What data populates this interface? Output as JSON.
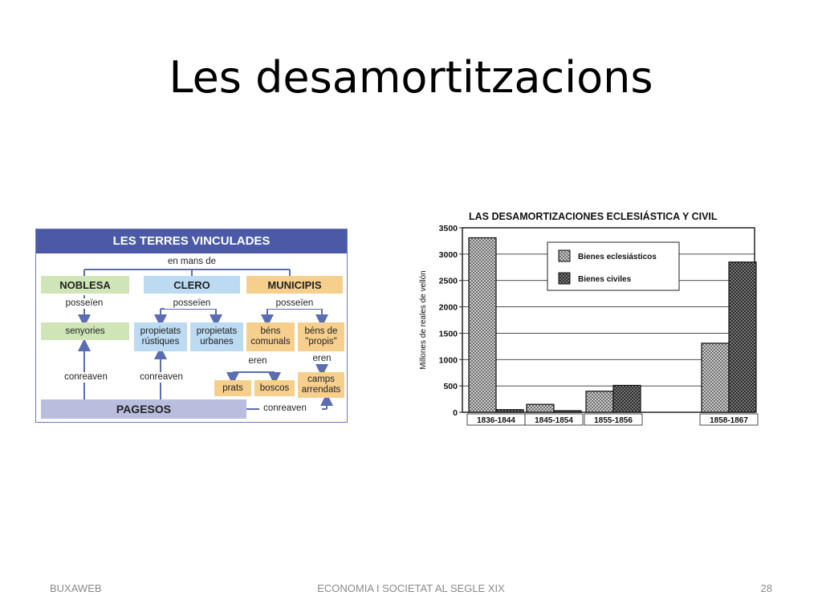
{
  "slide": {
    "title": "Les desamortitzacions",
    "footer_left": "BUXAWEB",
    "footer_center": "ECONOMIA I SOCIETAT AL SEGLE XIX",
    "footer_right": "28"
  },
  "diagram": {
    "header": "LES TERRES VINCULADES",
    "en_mans_de": "en mans de",
    "noblesa": "NOBLESA",
    "clero": "CLERO",
    "municipis": "MUNICIPIS",
    "posseien": "posseïen",
    "senyories": "senyories",
    "propietats_rustiques": "propietats rústiques",
    "propietats_urbanes": "propietats urbanes",
    "bens_comunals": "béns comunals",
    "bens_propis": "béns de \"propis\"",
    "eren": "eren",
    "prats": "prats",
    "boscos": "boscos",
    "camps_arrendats": "camps arrendats",
    "conreaven": "conreaven",
    "pagesos": "PAGESOS",
    "colors": {
      "header": "#4a5aa6",
      "green": "#cfe5b8",
      "blue": "#bcdaf2",
      "orange": "#f6cf8d",
      "pagesos": "#b9bedf",
      "arrow": "#5a6db3"
    }
  },
  "chart_data": {
    "type": "bar",
    "title": "LAS DESAMORTIZACIONES ECLESIÁSTICA Y CIVIL",
    "ylabel": "Millones de reales de vellón",
    "xlabel": "",
    "ylim": [
      0,
      3500
    ],
    "yticks": [
      "0",
      "500",
      "1000",
      "1500",
      "2000",
      "2500",
      "3000",
      "3500"
    ],
    "categories": [
      "1836-1844",
      "1845-1854",
      "1855-1856",
      "1858-1867"
    ],
    "series": [
      {
        "name": "Bienes eclesiásticos",
        "values": [
          3310,
          150,
          400,
          1310
        ],
        "pattern": "light-crosshatch"
      },
      {
        "name": "Bienes civiles",
        "values": [
          50,
          30,
          510,
          2850
        ],
        "pattern": "dark-crosshatch"
      }
    ],
    "legend": "top-center",
    "grid": true
  }
}
